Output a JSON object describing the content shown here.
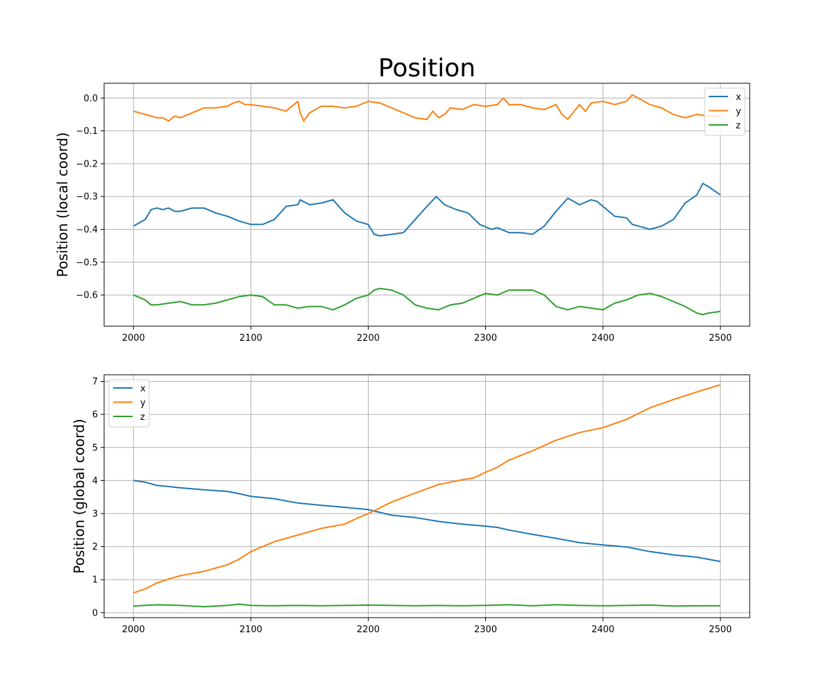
{
  "figure": {
    "title": "Position"
  },
  "chart_data": [
    {
      "type": "line",
      "ylabel": "Position (local coord)",
      "xlabel": "",
      "xlim": [
        1975,
        2525
      ],
      "ylim": [
        -0.695,
        0.045
      ],
      "xticks": [
        2000,
        2100,
        2200,
        2300,
        2400,
        2500
      ],
      "xtick_labels": [
        "2000",
        "2100",
        "2200",
        "2300",
        "2400",
        "2500"
      ],
      "yticks": [
        0.0,
        -0.1,
        -0.2,
        -0.3,
        -0.4,
        -0.5,
        -0.6
      ],
      "ytick_labels": [
        "0.0",
        "−0.1",
        "−0.2",
        "−0.3",
        "−0.4",
        "−0.5",
        "−0.6"
      ],
      "grid": true,
      "legend": "top-right",
      "series": [
        {
          "name": "x",
          "color": "#1f77b4",
          "x": [
            2000,
            2010,
            2015,
            2020,
            2025,
            2030,
            2035,
            2040,
            2050,
            2060,
            2070,
            2080,
            2090,
            2100,
            2110,
            2120,
            2130,
            2140,
            2142,
            2150,
            2160,
            2170,
            2180,
            2190,
            2200,
            2205,
            2210,
            2220,
            2230,
            2240,
            2250,
            2258,
            2265,
            2275,
            2285,
            2295,
            2305,
            2310,
            2320,
            2330,
            2340,
            2350,
            2360,
            2370,
            2380,
            2390,
            2395,
            2400,
            2410,
            2420,
            2425,
            2430,
            2440,
            2450,
            2460,
            2470,
            2480,
            2485,
            2490,
            2500
          ],
          "y": [
            -0.39,
            -0.37,
            -0.34,
            -0.335,
            -0.34,
            -0.335,
            -0.345,
            -0.345,
            -0.335,
            -0.335,
            -0.35,
            -0.36,
            -0.375,
            -0.385,
            -0.385,
            -0.37,
            -0.33,
            -0.325,
            -0.31,
            -0.325,
            -0.32,
            -0.31,
            -0.35,
            -0.375,
            -0.385,
            -0.415,
            -0.42,
            -0.415,
            -0.41,
            -0.37,
            -0.33,
            -0.3,
            -0.325,
            -0.34,
            -0.35,
            -0.385,
            -0.4,
            -0.395,
            -0.41,
            -0.41,
            -0.415,
            -0.39,
            -0.345,
            -0.305,
            -0.325,
            -0.31,
            -0.315,
            -0.33,
            -0.36,
            -0.365,
            -0.385,
            -0.39,
            -0.4,
            -0.39,
            -0.37,
            -0.32,
            -0.295,
            -0.26,
            -0.27,
            -0.295
          ]
        },
        {
          "name": "y",
          "color": "#ff7f0e",
          "x": [
            2000,
            2010,
            2020,
            2025,
            2030,
            2035,
            2040,
            2050,
            2060,
            2070,
            2080,
            2085,
            2090,
            2095,
            2100,
            2110,
            2120,
            2130,
            2140,
            2142,
            2145,
            2150,
            2160,
            2170,
            2180,
            2190,
            2200,
            2210,
            2220,
            2230,
            2240,
            2250,
            2255,
            2260,
            2265,
            2270,
            2280,
            2290,
            2300,
            2310,
            2315,
            2320,
            2330,
            2340,
            2350,
            2360,
            2365,
            2370,
            2380,
            2385,
            2390,
            2400,
            2410,
            2420,
            2425,
            2430,
            2440,
            2450,
            2460,
            2470,
            2480,
            2490,
            2500
          ],
          "y": [
            -0.04,
            -0.05,
            -0.06,
            -0.06,
            -0.07,
            -0.055,
            -0.06,
            -0.045,
            -0.03,
            -0.03,
            -0.025,
            -0.015,
            -0.01,
            -0.02,
            -0.02,
            -0.025,
            -0.03,
            -0.04,
            -0.01,
            -0.045,
            -0.07,
            -0.045,
            -0.025,
            -0.025,
            -0.03,
            -0.025,
            -0.01,
            -0.015,
            -0.03,
            -0.045,
            -0.06,
            -0.065,
            -0.04,
            -0.06,
            -0.05,
            -0.03,
            -0.035,
            -0.02,
            -0.025,
            -0.02,
            0.0,
            -0.02,
            -0.02,
            -0.03,
            -0.035,
            -0.02,
            -0.05,
            -0.065,
            -0.02,
            -0.04,
            -0.015,
            -0.01,
            -0.02,
            -0.01,
            0.01,
            0.0,
            -0.02,
            -0.03,
            -0.05,
            -0.06,
            -0.05,
            -0.055,
            -0.055
          ]
        },
        {
          "name": "z",
          "color": "#2ca02c",
          "x": [
            2000,
            2010,
            2015,
            2020,
            2030,
            2040,
            2050,
            2060,
            2070,
            2080,
            2090,
            2100,
            2110,
            2120,
            2130,
            2140,
            2150,
            2160,
            2170,
            2180,
            2190,
            2200,
            2205,
            2210,
            2220,
            2230,
            2240,
            2250,
            2260,
            2270,
            2280,
            2290,
            2300,
            2310,
            2320,
            2330,
            2340,
            2350,
            2360,
            2370,
            2380,
            2390,
            2400,
            2410,
            2420,
            2430,
            2440,
            2450,
            2460,
            2470,
            2480,
            2485,
            2490,
            2500
          ],
          "y": [
            -0.6,
            -0.615,
            -0.63,
            -0.63,
            -0.625,
            -0.62,
            -0.63,
            -0.63,
            -0.625,
            -0.615,
            -0.605,
            -0.6,
            -0.605,
            -0.63,
            -0.63,
            -0.64,
            -0.635,
            -0.635,
            -0.645,
            -0.63,
            -0.61,
            -0.6,
            -0.585,
            -0.58,
            -0.585,
            -0.6,
            -0.63,
            -0.64,
            -0.645,
            -0.63,
            -0.625,
            -0.61,
            -0.595,
            -0.6,
            -0.585,
            -0.585,
            -0.585,
            -0.6,
            -0.635,
            -0.645,
            -0.635,
            -0.64,
            -0.645,
            -0.625,
            -0.615,
            -0.6,
            -0.595,
            -0.605,
            -0.62,
            -0.635,
            -0.655,
            -0.66,
            -0.655,
            -0.65
          ]
        }
      ]
    },
    {
      "type": "line",
      "ylabel": "Position (global coord)",
      "xlabel": "",
      "xlim": [
        1975,
        2525
      ],
      "ylim": [
        -0.15,
        7.2
      ],
      "xticks": [
        2000,
        2100,
        2200,
        2300,
        2400,
        2500
      ],
      "xtick_labels": [
        "2000",
        "2100",
        "2200",
        "2300",
        "2400",
        "2500"
      ],
      "yticks": [
        0,
        1,
        2,
        3,
        4,
        5,
        6,
        7
      ],
      "ytick_labels": [
        "0",
        "1",
        "2",
        "3",
        "4",
        "5",
        "6",
        "7"
      ],
      "grid": true,
      "legend": "top-left",
      "series": [
        {
          "name": "x",
          "color": "#1f77b4",
          "x": [
            2000,
            2010,
            2020,
            2030,
            2040,
            2060,
            2080,
            2090,
            2100,
            2120,
            2140,
            2160,
            2180,
            2200,
            2220,
            2240,
            2260,
            2280,
            2300,
            2310,
            2320,
            2340,
            2360,
            2380,
            2400,
            2420,
            2440,
            2460,
            2480,
            2500
          ],
          "y": [
            4.0,
            3.95,
            3.85,
            3.82,
            3.78,
            3.72,
            3.67,
            3.6,
            3.52,
            3.45,
            3.32,
            3.25,
            3.19,
            3.12,
            2.95,
            2.88,
            2.76,
            2.68,
            2.62,
            2.58,
            2.5,
            2.37,
            2.25,
            2.12,
            2.05,
            1.99,
            1.85,
            1.75,
            1.68,
            1.55
          ]
        },
        {
          "name": "y",
          "color": "#ff7f0e",
          "x": [
            2000,
            2010,
            2020,
            2030,
            2040,
            2060,
            2080,
            2090,
            2100,
            2120,
            2140,
            2160,
            2180,
            2190,
            2200,
            2220,
            2240,
            2260,
            2280,
            2290,
            2300,
            2310,
            2320,
            2340,
            2360,
            2380,
            2400,
            2420,
            2440,
            2460,
            2480,
            2500
          ],
          "y": [
            0.6,
            0.72,
            0.9,
            1.02,
            1.12,
            1.25,
            1.45,
            1.62,
            1.85,
            2.15,
            2.35,
            2.55,
            2.68,
            2.85,
            3.0,
            3.35,
            3.62,
            3.88,
            4.02,
            4.08,
            4.25,
            4.4,
            4.62,
            4.9,
            5.22,
            5.45,
            5.6,
            5.85,
            6.2,
            6.45,
            6.68,
            6.9
          ]
        },
        {
          "name": "z",
          "color": "#2ca02c",
          "x": [
            2000,
            2020,
            2040,
            2060,
            2080,
            2090,
            2100,
            2120,
            2140,
            2160,
            2180,
            2200,
            2220,
            2240,
            2260,
            2280,
            2300,
            2320,
            2340,
            2360,
            2380,
            2400,
            2420,
            2440,
            2460,
            2480,
            2500
          ],
          "y": [
            0.2,
            0.24,
            0.22,
            0.18,
            0.22,
            0.26,
            0.22,
            0.21,
            0.22,
            0.21,
            0.22,
            0.23,
            0.22,
            0.21,
            0.22,
            0.21,
            0.22,
            0.24,
            0.21,
            0.24,
            0.22,
            0.21,
            0.22,
            0.23,
            0.2,
            0.21,
            0.21
          ]
        }
      ]
    }
  ]
}
